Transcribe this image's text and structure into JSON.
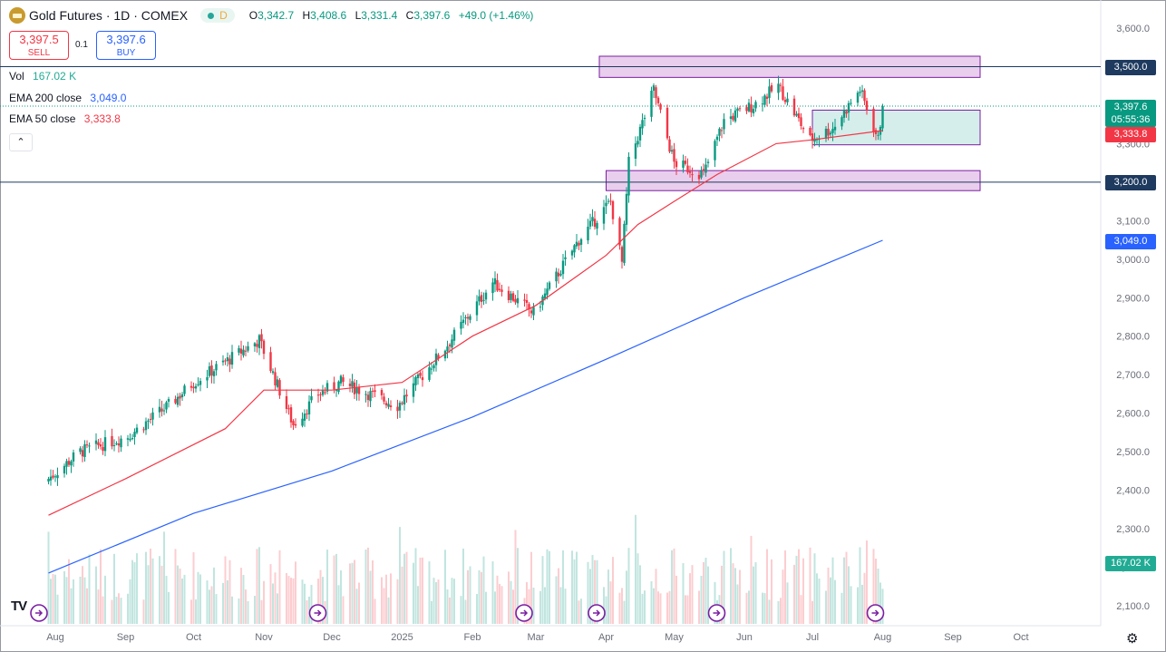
{
  "header": {
    "symbol": "Gold Futures",
    "separator": "·",
    "interval": "1D",
    "exchange": "COMEX",
    "status_letter": "D",
    "open_key": "O",
    "open": "3,342.7",
    "high_key": "H",
    "high": "3,408.6",
    "low_key": "L",
    "low": "3,331.4",
    "close_key": "C",
    "close": "3,397.6",
    "change": "+49.0 (+1.46%)"
  },
  "trade": {
    "sell_price": "3,397.5",
    "sell_label": "SELL",
    "spread": "0.1",
    "buy_price": "3,397.6",
    "buy_label": "BUY"
  },
  "indicators": {
    "vol_label": "Vol",
    "vol_value": "167.02 K",
    "ema200_label": "EMA 200 close",
    "ema200_value": "3,049.0",
    "ema50_label": "EMA 50 close",
    "ema50_value": "3,333.8",
    "collapse_glyph": "⌃"
  },
  "price_labels": {
    "resistance": "3,500.0",
    "last_price": "3,397.6",
    "countdown": "05:55:36",
    "ema50": "3,333.8",
    "support": "3,200.0",
    "ema200": "3,049.0",
    "volume": "167.02 K"
  },
  "icons": {
    "event_icon": "arrow-circle-icon",
    "settings_icon": "gear-icon",
    "logo": "TV"
  },
  "colors": {
    "up": "#089981",
    "down": "#f23645",
    "ema50": "#f23645",
    "ema200": "#2962ff",
    "zone": "#ce93d8",
    "range_box": "#b2dfdb"
  },
  "chart_data": {
    "type": "candlestick",
    "title": "Gold Futures · 1D · COMEX",
    "y_axis": {
      "range": [
        2050,
        3625
      ],
      "ticks": [
        "3,600.0",
        "3,500.0",
        "3,400.0",
        "3,300.0",
        "3,200.0",
        "3,100.0",
        "3,000.0",
        "2,900.0",
        "2,800.0",
        "2,700.0",
        "2,600.0",
        "2,500.0",
        "2,400.0",
        "2,300.0",
        "2,200.0",
        "2,100.0"
      ]
    },
    "x_axis": {
      "ticks": [
        "Aug",
        "Sep",
        "Oct",
        "Nov",
        "Dec",
        "2025",
        "Feb",
        "Mar",
        "Apr",
        "May",
        "Jun",
        "Jul",
        "Aug",
        "Sep",
        "Oct"
      ]
    },
    "price_path": {
      "dates": [
        "2024-07-29",
        "2024-08-12",
        "2024-09-02",
        "2024-09-20",
        "2024-10-01",
        "2024-10-30",
        "2024-11-14",
        "2024-11-25",
        "2024-12-05",
        "2024-12-30",
        "2025-01-20",
        "2025-02-10",
        "2025-02-28",
        "2025-03-20",
        "2025-04-03",
        "2025-04-08",
        "2025-04-11",
        "2025-04-22",
        "2025-05-01",
        "2025-05-14",
        "2025-05-23",
        "2025-06-05",
        "2025-06-16",
        "2025-06-30",
        "2025-07-10",
        "2025-07-22",
        "2025-07-30",
        "2025-08-01"
      ],
      "closes": [
        2430,
        2500,
        2540,
        2620,
        2680,
        2790,
        2570,
        2650,
        2680,
        2620,
        2770,
        2940,
        2860,
        3050,
        3150,
        2990,
        3250,
        3440,
        3250,
        3220,
        3360,
        3400,
        3450,
        3310,
        3340,
        3440,
        3310,
        3397.6
      ]
    },
    "ema_50": {
      "dates": [
        "2024-07-29",
        "2024-09-01",
        "2024-10-15",
        "2024-11-01",
        "2024-12-01",
        "2025-01-01",
        "2025-02-01",
        "2025-03-01",
        "2025-04-01",
        "2025-04-15",
        "2025-05-01",
        "2025-05-20",
        "2025-06-15",
        "2025-07-01",
        "2025-08-01"
      ],
      "values": [
        2335,
        2430,
        2560,
        2660,
        2660,
        2680,
        2800,
        2880,
        3010,
        3090,
        3150,
        3220,
        3300,
        3310,
        3333.8
      ]
    },
    "ema_200": {
      "dates": [
        "2024-07-29",
        "2024-10-01",
        "2024-12-01",
        "2025-02-01",
        "2025-04-01",
        "2025-06-01",
        "2025-08-01"
      ],
      "values": [
        2185,
        2340,
        2450,
        2590,
        2740,
        2900,
        3049.0
      ]
    },
    "horizontal_lines": [
      {
        "name": "resistance",
        "value": 3500.0
      },
      {
        "name": "support",
        "value": 3200.0
      }
    ],
    "zones": [
      {
        "name": "resistance-zone",
        "from": "2025-03-29",
        "to": "2025-09-13",
        "low": 3472,
        "high": 3527
      },
      {
        "name": "support-zone",
        "from": "2025-04-01",
        "to": "2025-09-13",
        "low": 3178,
        "high": 3230
      },
      {
        "name": "range-box",
        "from": "2025-07-01",
        "to": "2025-09-13",
        "low": 3297,
        "high": 3387
      }
    ],
    "volume": {
      "last": "167.02 K"
    }
  }
}
